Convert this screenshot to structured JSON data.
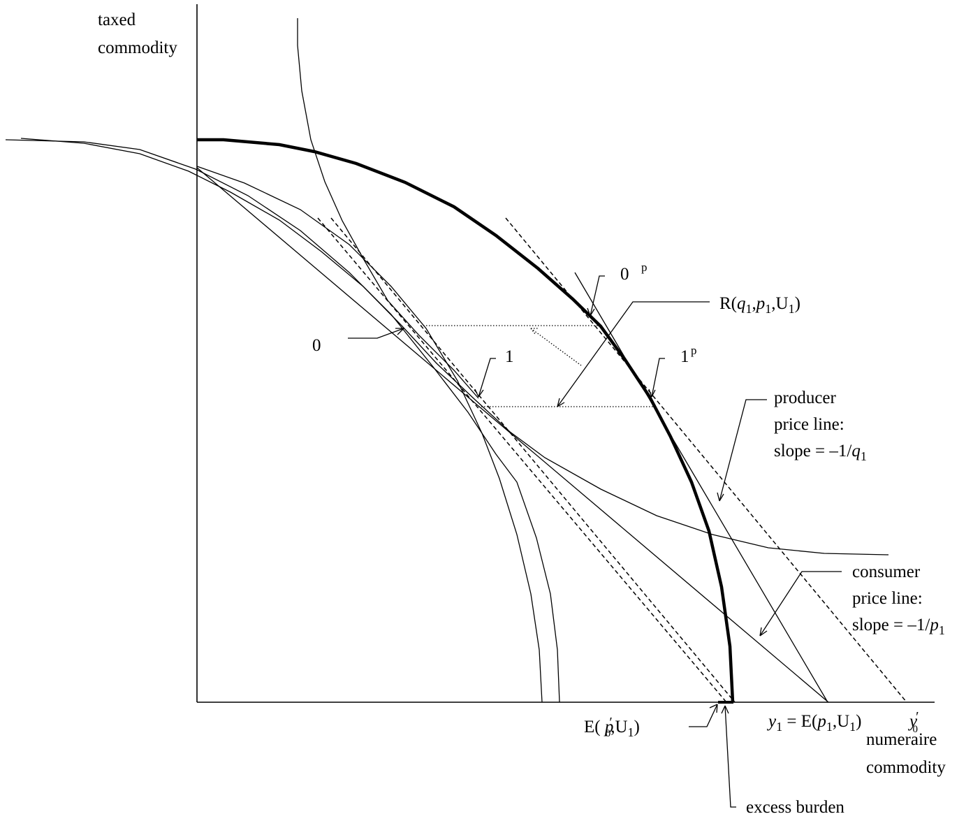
{
  "axes": {
    "y_label_line1": "taxed",
    "y_label_line2": "commodity",
    "x_label_line1": "numeraire",
    "x_label_line2": "commodity"
  },
  "points": {
    "p0": "0",
    "p1": "1",
    "p0p_main": "0",
    "p0p_sup": "p",
    "p1p_main": "1",
    "p1p_sup": "p"
  },
  "labels": {
    "revenue": {
      "prefix": "R(",
      "q": "q",
      "q_sub": "1",
      "comma1": ",",
      "p": "p",
      "p_sub": "1",
      "mid": ",U",
      "u_sub": "1",
      "suffix": ")"
    },
    "producer": {
      "line1": "producer",
      "line2": "price line:",
      "line3_prefix": "slope = –1/",
      "line3_var": "q",
      "line3_sub": "1"
    },
    "consumer": {
      "line1": "consumer",
      "line2": "price line:",
      "line3_prefix": "slope = –1/",
      "line3_var": "p",
      "line3_sub": "1"
    },
    "e_p0": {
      "prefix": "E( ",
      "var": "p",
      "prime": "′",
      "sub": "0",
      "mid": ",U",
      "u_sub": "1",
      "suffix": ")"
    },
    "y1": {
      "var": "y",
      "sub": "1",
      "mid": " = E(",
      "p": "p",
      "p_sub": "1",
      "comma": ",U",
      "u_sub": "1",
      "suffix": ")"
    },
    "y0": {
      "var": "y",
      "prime": "′",
      "sub": "0"
    },
    "excess": "excess burden"
  }
}
